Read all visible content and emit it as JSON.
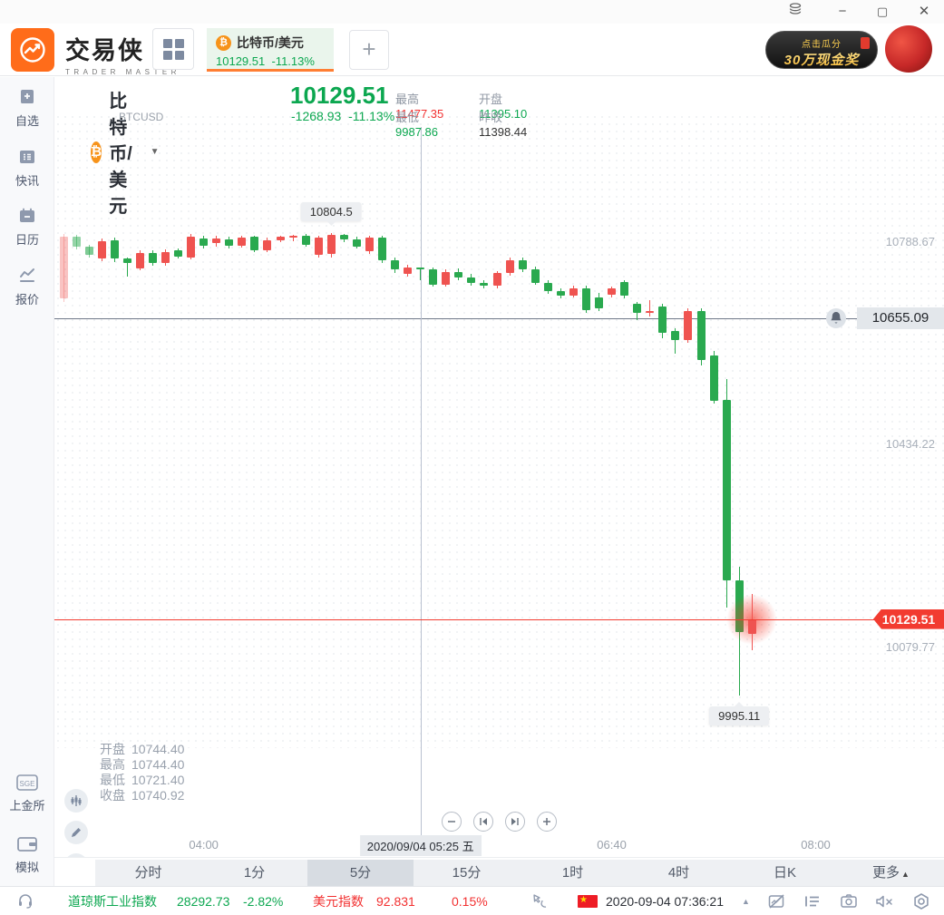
{
  "window_controls": {
    "layers": "≡",
    "minimize": "−",
    "maximize": "▢",
    "close": "✕"
  },
  "topbar": {
    "brand": {
      "name": "交易侠",
      "subtitle": "TRADER MASTER"
    },
    "grid_button": "workspace-grid",
    "tab": {
      "symbol": "比特币/美元",
      "price": "10129.51",
      "change_pct": "-11.13%",
      "btc_glyph": "₿"
    },
    "add_tab_label": "+",
    "banner": {
      "line1": "点击瓜分",
      "line2": "30万现金奖"
    }
  },
  "sidebar": {
    "top": [
      {
        "label": "自选"
      },
      {
        "label": "快讯"
      },
      {
        "label": "日历"
      },
      {
        "label": "报价"
      }
    ],
    "bottom": [
      {
        "label": "上金所",
        "badge": "SGE"
      },
      {
        "label": "模拟"
      }
    ]
  },
  "chart_header": {
    "symbol": "比特币/美元",
    "caret": "▼",
    "code": "BTCUSD",
    "price": "10129.51",
    "change": "-1268.93",
    "change_pct": "-11.13%",
    "btc_glyph": "₿",
    "stats": [
      {
        "label": "最高",
        "value": "11477.35",
        "color": "red"
      },
      {
        "label": "开盘",
        "value": "11395.10",
        "color": "green"
      },
      {
        "label": "最低",
        "value": "9987.86",
        "color": "green"
      },
      {
        "label": "昨收",
        "value": "11398.44",
        "color": "dark"
      }
    ]
  },
  "chart_data": {
    "type": "candlestick",
    "symbol": "BTCUSD",
    "interval": "5分",
    "up_color": "#ef5350",
    "down_color": "#2aa94f",
    "price_range_visible": [
      9995.11,
      10804.5
    ],
    "candles": [
      [
        "03:05",
        10690,
        10802,
        10684,
        10798
      ],
      [
        "03:10",
        10798,
        10801,
        10776,
        10780
      ],
      [
        "03:15",
        10780,
        10784,
        10762,
        10766
      ],
      [
        "03:20",
        10760,
        10794,
        10755,
        10790
      ],
      [
        "03:25",
        10792,
        10796,
        10754,
        10759
      ],
      [
        "03:30",
        10759,
        10762,
        10728,
        10751
      ],
      [
        "03:35",
        10743,
        10774,
        10739,
        10770
      ],
      [
        "03:40",
        10770,
        10774,
        10747,
        10751
      ],
      [
        "03:45",
        10751,
        10775,
        10747,
        10771
      ],
      [
        "03:50",
        10774,
        10777,
        10759,
        10763
      ],
      [
        "03:55",
        10762,
        10802,
        10758,
        10798
      ],
      [
        "04:00",
        10795,
        10800,
        10777,
        10782
      ],
      [
        "04:05",
        10786,
        10800,
        10781,
        10795
      ],
      [
        "04:10",
        10793,
        10798,
        10777,
        10782
      ],
      [
        "04:15",
        10782,
        10799,
        10778,
        10796
      ],
      [
        "04:20",
        10797,
        10800,
        10770,
        10774
      ],
      [
        "04:25",
        10774,
        10796,
        10770,
        10792
      ],
      [
        "04:30",
        10792,
        10800,
        10788,
        10797
      ],
      [
        "04:35",
        10797,
        10801,
        10790,
        10799
      ],
      [
        "04:40",
        10799,
        10803,
        10780,
        10784
      ],
      [
        "04:45",
        10766,
        10800,
        10762,
        10796
      ],
      [
        "04:50",
        10768,
        10804.5,
        10762,
        10801
      ],
      [
        "04:55",
        10801,
        10803,
        10788,
        10793
      ],
      [
        "05:00",
        10793,
        10797,
        10777,
        10781
      ],
      [
        "05:05",
        10772,
        10800,
        10768,
        10796
      ],
      [
        "05:10",
        10796,
        10799,
        10752,
        10757
      ],
      [
        "05:15",
        10757,
        10761,
        10735,
        10740
      ],
      [
        "05:20",
        10732,
        10748,
        10728,
        10744
      ],
      [
        "05:25",
        10744.4,
        10744.4,
        10721.4,
        10740.92
      ],
      [
        "05:30",
        10740,
        10744,
        10710,
        10714
      ],
      [
        "05:35",
        10714,
        10740,
        10710,
        10736
      ],
      [
        "05:40",
        10736,
        10742,
        10722,
        10727
      ],
      [
        "05:45",
        10727,
        10733,
        10712,
        10717
      ],
      [
        "05:50",
        10717,
        10722,
        10708,
        10712
      ],
      [
        "05:55",
        10712,
        10738,
        10708,
        10734
      ],
      [
        "06:00",
        10734,
        10762,
        10730,
        10757
      ],
      [
        "06:05",
        10757,
        10761,
        10736,
        10741
      ],
      [
        "06:10",
        10741,
        10745,
        10713,
        10717
      ],
      [
        "06:15",
        10717,
        10721,
        10698,
        10703
      ],
      [
        "06:20",
        10703,
        10707,
        10690,
        10695
      ],
      [
        "06:25",
        10695,
        10712,
        10691,
        10708
      ],
      [
        "06:30",
        10708,
        10712,
        10665,
        10670
      ],
      [
        "06:35",
        10692,
        10699,
        10668,
        10672
      ],
      [
        "06:40",
        10696,
        10710,
        10692,
        10707
      ],
      [
        "06:45",
        10718,
        10722,
        10690,
        10694
      ],
      [
        "06:50",
        10680,
        10684,
        10652,
        10664
      ],
      [
        "06:55",
        10664,
        10686,
        10658,
        10668
      ],
      [
        "07:00",
        10676,
        10680,
        10620,
        10630
      ],
      [
        "07:05",
        10633,
        10637,
        10593,
        10617
      ],
      [
        "07:10",
        10617,
        10672,
        10613,
        10668
      ],
      [
        "07:15",
        10668,
        10672,
        10573,
        10582
      ],
      [
        "07:20",
        10590,
        10598,
        10506,
        10511
      ],
      [
        "07:25",
        10512,
        10549,
        10150,
        10197
      ],
      [
        "07:30",
        10197,
        10221,
        9995.11,
        10107
      ],
      [
        "07:35",
        10104,
        10173,
        10075,
        10129.51
      ]
    ],
    "y_axis_labels": [
      {
        "text": "10788.67",
        "value": 10788.67
      },
      {
        "text": "10434.22",
        "value": 10434.22
      },
      {
        "text": "10079.77",
        "value": 10079.77
      }
    ],
    "x_axis_labels": [
      {
        "text": "04:00",
        "slot": 11
      },
      {
        "text": "06:40",
        "slot": 43
      },
      {
        "text": "08:00",
        "slot": 59
      }
    ],
    "alert_line": {
      "value": 10655.09,
      "label": "10655.09"
    },
    "current_price_line": {
      "value": 10129.51,
      "label": "10129.51"
    },
    "annotations": [
      {
        "text": "10804.5",
        "slot": 21,
        "attach": "high"
      },
      {
        "text": "9995.11",
        "slot": 53,
        "attach": "low"
      }
    ],
    "crosshair": {
      "slot": 28,
      "date_label": "2020/09/04 05:25 五"
    },
    "ohlc_tooltip": [
      {
        "label": "开盘",
        "value": "10744.40"
      },
      {
        "label": "最高",
        "value": "10744.40"
      },
      {
        "label": "最低",
        "value": "10721.40"
      },
      {
        "label": "收盘",
        "value": "10740.92"
      }
    ]
  },
  "toolbar": {
    "timeframes": [
      "分时",
      "1分",
      "5分",
      "15分",
      "1时",
      "4时",
      "日K",
      "更多"
    ],
    "selected": "5分",
    "more_arrow": "▲"
  },
  "statusbar": {
    "index1": {
      "name": "道琼斯工业指数",
      "value": "28292.73",
      "change": "-2.82%"
    },
    "index2": {
      "name": "美元指数",
      "value": "92.831",
      "change": "0.15%"
    },
    "datetime": "2020-09-04 07:36:21",
    "collapse_arrow": "▲",
    "flag_star": "★"
  },
  "icons": [
    "layers-icon",
    "minimize-icon",
    "maximize-icon",
    "close-icon",
    "grid-icon",
    "plus-icon",
    "bitcoin-icon",
    "watchlist-icon",
    "news-icon",
    "calendar-icon",
    "quotes-icon",
    "sge-icon",
    "demo-wallet-icon",
    "candlestick-tool-icon",
    "pencil-tool-icon",
    "line-chart-tool-icon",
    "zoom-out-icon",
    "skip-prev-icon",
    "skip-next-icon",
    "zoom-in-icon",
    "bell-icon",
    "headset-icon",
    "network-icon",
    "cn-flag-icon",
    "collapse-icon",
    "chart-off-icon",
    "queue-list-icon",
    "camera-icon",
    "mute-icon",
    "settings-icon"
  ]
}
